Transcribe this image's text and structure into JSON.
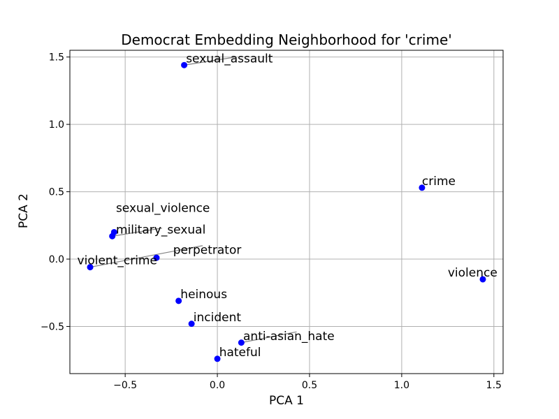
{
  "chart_data": {
    "type": "scatter",
    "title": "Democrat Embedding Neighborhood for 'crime'",
    "xlabel": "PCA 1",
    "ylabel": "PCA 2",
    "xlim": [
      -0.8,
      1.55
    ],
    "ylim": [
      -0.85,
      1.55
    ],
    "xticks": [
      -0.5,
      0.0,
      0.5,
      1.0,
      1.5
    ],
    "xtick_labels": [
      "−0.5",
      "0.0",
      "0.5",
      "1.0",
      "1.5"
    ],
    "yticks": [
      -0.5,
      0.0,
      0.5,
      1.0,
      1.5
    ],
    "ytick_labels": [
      "−0.5",
      "0.0",
      "0.5",
      "1.0",
      "1.5"
    ],
    "grid": true,
    "point_color": "#0000ff",
    "leader_color": "#808080",
    "points": [
      {
        "label": "sexual_assault",
        "x": -0.18,
        "y": 1.44,
        "label_x": -0.17,
        "label_y": 1.46
      },
      {
        "label": "crime",
        "x": 1.11,
        "y": 0.53,
        "label_x": 1.11,
        "label_y": 0.55
      },
      {
        "label": "sexual_violence",
        "x": -0.56,
        "y": 0.2,
        "label_x": -0.55,
        "label_y": 0.35
      },
      {
        "label": "military_sexual",
        "x": -0.57,
        "y": 0.17,
        "label_x": -0.55,
        "label_y": 0.19
      },
      {
        "label": "perpetrator",
        "x": -0.33,
        "y": 0.01,
        "label_x": -0.24,
        "label_y": 0.04
      },
      {
        "label": "violent_crime",
        "x": -0.69,
        "y": -0.06,
        "label_x": -0.76,
        "label_y": -0.04
      },
      {
        "label": "violence",
        "x": 1.44,
        "y": -0.15,
        "label_x": 1.25,
        "label_y": -0.13
      },
      {
        "label": "heinous",
        "x": -0.21,
        "y": -0.31,
        "label_x": -0.2,
        "label_y": -0.29
      },
      {
        "label": "incident",
        "x": -0.14,
        "y": -0.48,
        "label_x": -0.13,
        "label_y": -0.46
      },
      {
        "label": "anti-asian_hate",
        "x": 0.13,
        "y": -0.62,
        "label_x": 0.14,
        "label_y": -0.6
      },
      {
        "label": "hateful",
        "x": 0.0,
        "y": -0.74,
        "label_x": 0.01,
        "label_y": -0.72
      }
    ],
    "leaders": [
      {
        "from": [
          -0.18,
          1.44
        ],
        "to": [
          0.1,
          1.5
        ]
      },
      {
        "from": [
          -0.57,
          0.17
        ],
        "to": [
          -0.3,
          0.23
        ]
      },
      {
        "from": [
          -0.69,
          -0.06
        ],
        "to": [
          -0.08,
          0.1
        ]
      },
      {
        "from": [
          0.13,
          -0.62
        ],
        "to": [
          0.43,
          -0.54
        ]
      }
    ]
  }
}
